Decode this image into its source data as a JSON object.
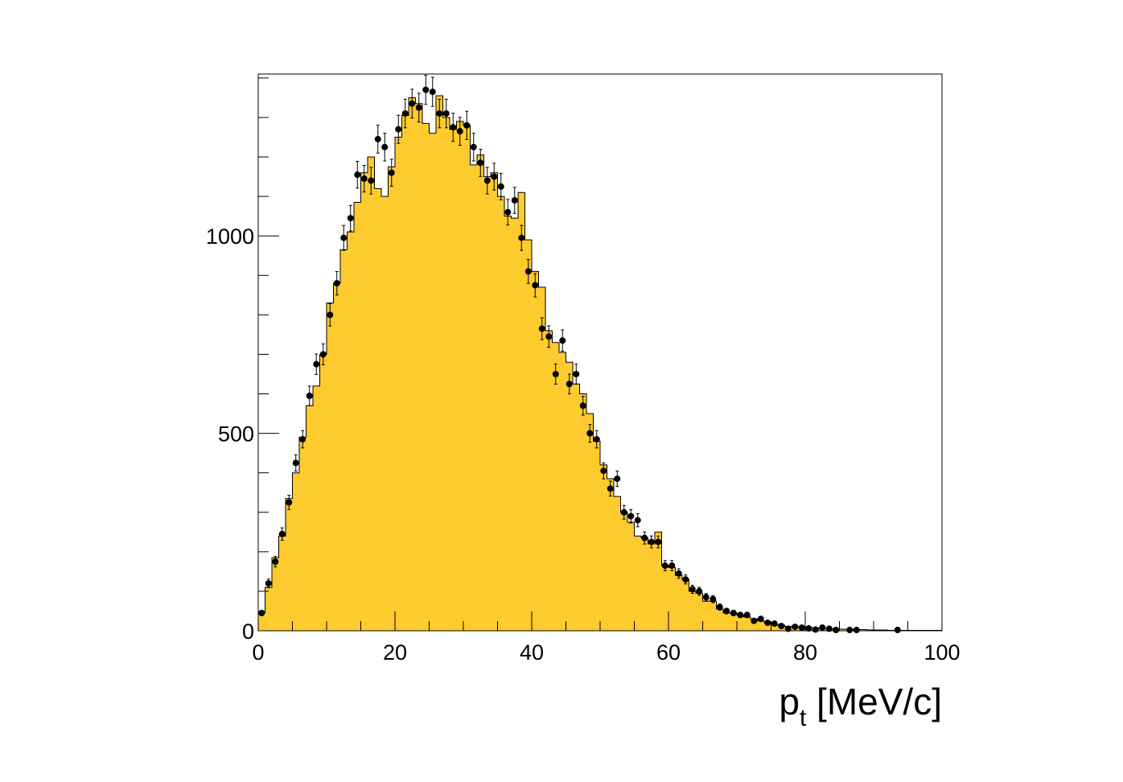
{
  "chart_data": {
    "type": "bar",
    "xlabel": "p",
    "xlabel_subscript": "t",
    "xlabel_unit": " [MeV/c]",
    "ylabel": "",
    "xlim": [
      0,
      100
    ],
    "ylim": [
      0,
      1410
    ],
    "bin_width": 1,
    "x_ticks": [
      "0",
      "20",
      "40",
      "60",
      "80",
      "100"
    ],
    "y_ticks": [
      "0",
      "500",
      "1000"
    ],
    "colors": {
      "hist_fill": "#fecb2f",
      "hist_line": "#000000",
      "points": "#000000"
    },
    "series": [
      {
        "kind": "histogram",
        "values": [
          45,
          110,
          185,
          240,
          335,
          400,
          490,
          570,
          620,
          700,
          830,
          880,
          965,
          1010,
          1085,
          1160,
          1200,
          1120,
          1100,
          1175,
          1250,
          1305,
          1350,
          1335,
          1285,
          1260,
          1355,
          1300,
          1270,
          1290,
          1280,
          1180,
          1205,
          1150,
          1160,
          1100,
          1050,
          1045,
          1110,
          990,
          910,
          870,
          760,
          730,
          705,
          680,
          625,
          600,
          550,
          480,
          420,
          385,
          340,
          300,
          275,
          240,
          235,
          220,
          250,
          165,
          160,
          140,
          130,
          100,
          95,
          75,
          75,
          55,
          45,
          45,
          40,
          35,
          30,
          25,
          20,
          16,
          14,
          11,
          10,
          9,
          8,
          7,
          6,
          6,
          5,
          4,
          4,
          3,
          3,
          2,
          2,
          2,
          1,
          1,
          1,
          1,
          1,
          1,
          1,
          1
        ]
      },
      {
        "kind": "points",
        "x": [
          0.5,
          1.5,
          2.5,
          3.5,
          4.5,
          5.5,
          6.5,
          7.5,
          8.5,
          9.5,
          10.5,
          11.5,
          12.5,
          13.5,
          14.5,
          15.5,
          16.5,
          17.5,
          18.5,
          19.5,
          20.5,
          21.5,
          22.5,
          23.5,
          24.5,
          25.5,
          26.5,
          27.5,
          28.5,
          29.5,
          30.5,
          31.5,
          32.5,
          33.5,
          34.5,
          35.5,
          36.5,
          37.5,
          38.5,
          39.5,
          40.5,
          41.5,
          42.5,
          43.5,
          44.5,
          45.5,
          46.5,
          47.5,
          48.5,
          49.5,
          50.5,
          51.5,
          52.5,
          53.5,
          54.5,
          55.5,
          56.5,
          57.5,
          58.5,
          59.5,
          60.5,
          61.5,
          62.5,
          63.5,
          64.5,
          65.5,
          66.5,
          67.5,
          68.5,
          69.5,
          70.5,
          71.5,
          72.5,
          73.5,
          74.5,
          75.5,
          76.5,
          77.5,
          78.5,
          79.5,
          80.5,
          81.5,
          82.5,
          83.5,
          84.5,
          86.5,
          87.5,
          93.5
        ],
        "y": [
          45,
          120,
          175,
          245,
          325,
          425,
          485,
          595,
          675,
          700,
          800,
          880,
          995,
          1045,
          1155,
          1145,
          1140,
          1245,
          1225,
          1160,
          1270,
          1310,
          1335,
          1325,
          1370,
          1365,
          1310,
          1310,
          1275,
          1265,
          1280,
          1225,
          1185,
          1140,
          1150,
          1125,
          1060,
          1090,
          995,
          910,
          875,
          765,
          745,
          650,
          735,
          625,
          650,
          570,
          500,
          485,
          405,
          360,
          385,
          300,
          290,
          280,
          235,
          225,
          225,
          165,
          165,
          145,
          130,
          105,
          100,
          85,
          80,
          60,
          50,
          45,
          40,
          40,
          25,
          30,
          20,
          18,
          12,
          5,
          10,
          8,
          6,
          3,
          8,
          5,
          2,
          2,
          2,
          2
        ]
      }
    ]
  }
}
